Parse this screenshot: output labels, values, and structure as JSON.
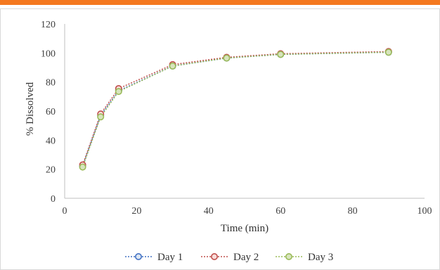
{
  "chart_data": {
    "type": "line",
    "title": "",
    "xlabel": "Time (min)",
    "ylabel": "% Dissolved",
    "xlim": [
      0,
      100
    ],
    "ylim": [
      0,
      120
    ],
    "xticks": [
      0,
      20,
      40,
      60,
      80,
      100
    ],
    "yticks": [
      0,
      20,
      40,
      60,
      80,
      100,
      120
    ],
    "grid": false,
    "legend_position": "bottom",
    "x": [
      5,
      10,
      15,
      30,
      45,
      60,
      90
    ],
    "series": [
      {
        "name": "Day 1",
        "values": [
          22,
          57,
          74,
          91,
          96.5,
          99,
          100.5
        ],
        "color": "#4472C4",
        "fill": "#dce6f2"
      },
      {
        "name": "Day 2",
        "values": [
          23,
          58,
          75.5,
          92,
          97,
          99.5,
          101
        ],
        "color": "#C0504D",
        "fill": "#f8dcd9"
      },
      {
        "name": "Day 3",
        "values": [
          21.5,
          56,
          73.5,
          91,
          96.5,
          99,
          100.5
        ],
        "color": "#9BBB59",
        "fill": "#d7e4bd"
      }
    ]
  },
  "colors": {
    "top_bar": "#F4781F",
    "axis": "#bfbfbf"
  }
}
